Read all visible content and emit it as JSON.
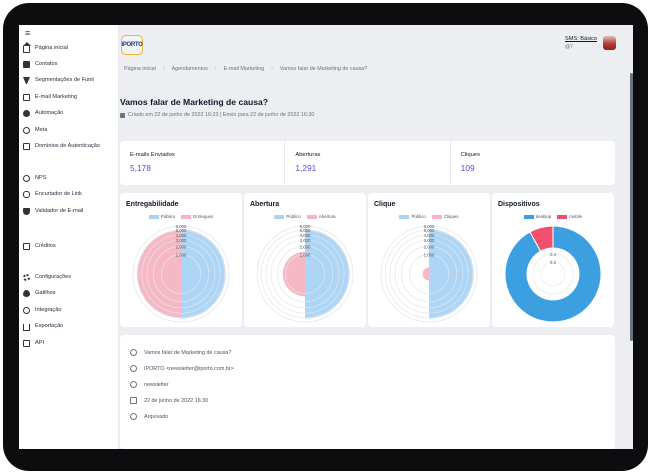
{
  "sidebar": {
    "items": [
      {
        "label": "Página inicial",
        "icon": "home-icon"
      },
      {
        "label": "Contatos",
        "icon": "contacts-icon"
      },
      {
        "label": "Segmentações de Funil",
        "icon": "funnel-icon"
      },
      {
        "label": "E-mail Marketing",
        "icon": "mail-icon"
      },
      {
        "label": "Automação",
        "icon": "automation-icon"
      },
      {
        "label": "Meta",
        "icon": "target-icon"
      },
      {
        "label": "Domínios de Autenticação",
        "icon": "domain-icon"
      },
      {
        "label": "NPS",
        "icon": "nps-icon"
      },
      {
        "label": "Encurtador de Link",
        "icon": "link-icon"
      },
      {
        "label": "Validador de E-mail",
        "icon": "shield-icon"
      },
      {
        "label": "Créditos",
        "icon": "credits-icon"
      },
      {
        "label": "Configurações",
        "icon": "gear-icon"
      },
      {
        "label": "Gatilhos",
        "icon": "trigger-icon"
      },
      {
        "label": "Integração",
        "icon": "share-icon"
      },
      {
        "label": "Exportação",
        "icon": "export-icon"
      },
      {
        "label": "API",
        "icon": "api-icon"
      }
    ]
  },
  "header": {
    "logo_text": "iPORTO",
    "plan": "SMS: Básico",
    "plan_sub": "@7"
  },
  "breadcrumb": [
    "Página inicial",
    "Agendamentos",
    "E-mail Marketing",
    "Vamos falar de Marketing de causa?"
  ],
  "page": {
    "title": "Vamos falar de Marketing de causa?",
    "meta": "Criado em 22 de junho de 2022 16:23 | Envio para 22 de junho de 2022 16:30"
  },
  "stats": [
    {
      "label": "E-mails Enviados",
      "value": "5,178"
    },
    {
      "label": "Aberturas",
      "value": "1,291"
    },
    {
      "label": "Cliques",
      "value": "109"
    }
  ],
  "colors": {
    "blue": "#a9d3f5",
    "pink": "#f7b4c2",
    "accent": "#5b4bd6",
    "donut_blue": "#3b9fe0",
    "donut_pink": "#f0506e"
  },
  "chart_data": [
    {
      "type": "polar-area",
      "title": "Entregabilidade",
      "series": [
        {
          "name": "Público",
          "value": 5178
        },
        {
          "name": "Entregues",
          "value": 5000
        }
      ],
      "ticks": [
        "6,000",
        "5,000",
        "4,000",
        "3,000",
        "2,000",
        "1,000"
      ],
      "r_max": 6000
    },
    {
      "type": "polar-area",
      "title": "Abertura",
      "series": [
        {
          "name": "Público",
          "value": 5178
        },
        {
          "name": "Abertura",
          "value": 1291
        }
      ],
      "ticks": [
        "6,000",
        "5,000",
        "4,000",
        "3,000",
        "2,000",
        "1,000"
      ],
      "r_max": 6000
    },
    {
      "type": "polar-area",
      "title": "Clique",
      "series": [
        {
          "name": "Público",
          "value": 5178
        },
        {
          "name": "Cliques",
          "value": 109
        }
      ],
      "ticks": [
        "6,000",
        "5,000",
        "4,000",
        "3,000",
        "2,000",
        "1,000"
      ],
      "r_max": 6000
    },
    {
      "type": "pie",
      "title": "Dispositivos",
      "series": [
        {
          "name": "desktop",
          "value": 0.92
        },
        {
          "name": "mobile",
          "value": 0.08
        }
      ],
      "ticks": [
        "0.4",
        "0.2"
      ]
    }
  ],
  "info": [
    {
      "text": "Vamos falar de Marketing de causa?",
      "icon": "subject-icon"
    },
    {
      "text": "IPORTO <newsletter@iporto.com.br>",
      "icon": "at-icon"
    },
    {
      "text": "newsletter",
      "icon": "tag-icon"
    },
    {
      "text": "22 de junho de 2022 16:30",
      "icon": "calendar-icon"
    },
    {
      "text": "Arquivado",
      "icon": "archive-icon"
    }
  ]
}
